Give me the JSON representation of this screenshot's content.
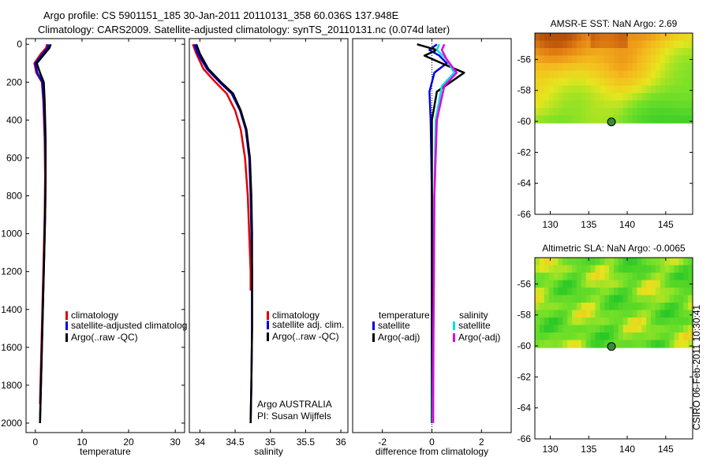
{
  "header": {
    "line1": "Argo profile: CS 5901151_185 30-Jan-2011 20110131_358 60.036S 137.948E",
    "line2": "Climatology: CARS2009. Satellite-adjusted climatology: synTS_20110131.nc (0.074d later)"
  },
  "side_label": "CSIRO 06-Feb-2011 10:30:41",
  "colors": {
    "climatology": "#e00000",
    "satellite": "#0000e0",
    "argo": "#000000",
    "sat_salinity": "#00e0e0",
    "argo_salinity": "#e000e0"
  },
  "chart_data": [
    {
      "type": "line",
      "id": "temperature",
      "xlabel": "temperature",
      "ylabel": "",
      "xlim": [
        -2,
        32
      ],
      "ylim": [
        2050,
        -30
      ],
      "xticks": [
        0,
        10,
        20,
        30
      ],
      "yticks": [
        0,
        200,
        400,
        600,
        800,
        1000,
        1200,
        1400,
        1600,
        1800,
        2000
      ],
      "legend": [
        "climatology",
        "satellite-adjusted climatolog",
        "Argo(..raw -QC)"
      ],
      "series": [
        {
          "name": "climatology",
          "color": "#e00000",
          "x": [
            2.5,
            2.3,
            1.2,
            -0.2,
            0.2,
            1.4,
            1.7,
            2.0,
            2.1,
            2.0,
            1.8,
            1.6,
            1.4,
            1.2,
            1.0
          ],
          "y": [
            0,
            20,
            50,
            100,
            150,
            200,
            300,
            500,
            700,
            900,
            1100,
            1300,
            1500,
            1700,
            1900
          ]
        },
        {
          "name": "satellite",
          "color": "#0000e0",
          "x": [
            2.8,
            2.6,
            1.6,
            0.0,
            0.4,
            1.5,
            1.8,
            2.1,
            2.2,
            2.1,
            1.9,
            1.7,
            1.5,
            1.3,
            1.1,
            1.0
          ],
          "y": [
            0,
            20,
            50,
            100,
            150,
            200,
            300,
            500,
            700,
            900,
            1100,
            1300,
            1500,
            1700,
            1900,
            2000
          ]
        },
        {
          "name": "argo",
          "color": "#000000",
          "x": [
            3.3,
            3.0,
            2.0,
            0.3,
            1.0,
            1.8,
            2.0,
            2.2,
            2.2,
            2.1,
            1.9,
            1.7,
            1.5,
            1.3,
            1.1,
            1.0
          ],
          "y": [
            0,
            20,
            50,
            100,
            150,
            200,
            300,
            500,
            700,
            900,
            1100,
            1300,
            1500,
            1700,
            1900,
            2000
          ]
        }
      ]
    },
    {
      "type": "line",
      "id": "salinity",
      "xlabel": "salinity",
      "ylabel": "",
      "xlim": [
        33.85,
        36.1
      ],
      "ylim": [
        2050,
        -30
      ],
      "xticks": [
        34,
        34.5,
        35,
        35.5,
        36
      ],
      "legend": [
        "climatology",
        "satellite adj. clim.",
        "Argo(..raw -QC)"
      ],
      "annotation": [
        "Argo AUSTRALIA",
        "PI: Susan Wijffels"
      ],
      "series": [
        {
          "name": "climatology",
          "color": "#e00000",
          "x": [
            33.9,
            33.95,
            34.05,
            34.22,
            34.38,
            34.5,
            34.58,
            34.64,
            34.68,
            34.7,
            34.72,
            34.72
          ],
          "y": [
            0,
            50,
            130,
            200,
            260,
            350,
            450,
            600,
            800,
            1000,
            1200,
            1300
          ]
        },
        {
          "name": "satellite",
          "color": "#0000e0",
          "x": [
            33.92,
            33.97,
            34.1,
            34.28,
            34.45,
            34.57,
            34.65,
            34.7,
            34.72,
            34.73,
            34.74,
            34.74,
            34.73,
            34.72
          ],
          "y": [
            0,
            50,
            130,
            200,
            260,
            350,
            450,
            600,
            800,
            1000,
            1200,
            1500,
            1800,
            2000
          ]
        },
        {
          "name": "argo",
          "color": "#000000",
          "x": [
            33.95,
            34.0,
            34.12,
            34.3,
            34.47,
            34.58,
            34.66,
            34.71,
            34.73,
            34.74,
            34.74,
            34.74,
            34.73,
            34.72
          ],
          "y": [
            0,
            50,
            130,
            200,
            260,
            350,
            450,
            600,
            800,
            1000,
            1200,
            1500,
            1800,
            2000
          ]
        }
      ]
    },
    {
      "type": "line",
      "id": "difference",
      "xlabel": "difference from climatology",
      "ylabel": "",
      "xlim": [
        -3.2,
        3.2
      ],
      "ylim": [
        2050,
        -30
      ],
      "xticks": [
        -2,
        0,
        2
      ],
      "legend_title_left": "temperature",
      "legend_title_right": "salinity",
      "legend": [
        "satellite",
        "Argo(-adj)",
        "satellite",
        "Argo(-adj)"
      ],
      "series": [
        {
          "name": "temperature satellite",
          "color": "#0000e0",
          "x": [
            0.2,
            -0.1,
            0.3,
            0.6,
            0.1,
            -0.1,
            -0.05,
            0.0,
            0.0,
            0.0,
            0.0
          ],
          "y": [
            0,
            30,
            60,
            100,
            150,
            250,
            400,
            800,
            1200,
            1600,
            2000
          ]
        },
        {
          "name": "temperature Argo(-adj)",
          "color": "#000000",
          "x": [
            -0.6,
            0.2,
            -0.3,
            0.4,
            1.3,
            0.2,
            0.0,
            0.0,
            0.0,
            0.0
          ],
          "y": [
            0,
            30,
            60,
            100,
            150,
            250,
            400,
            800,
            1400,
            2000
          ]
        },
        {
          "name": "salinity satellite",
          "color": "#00e0e0",
          "x": [
            0.3,
            0.2,
            0.6,
            0.9,
            0.4,
            0.15,
            0.1,
            0.08,
            0.05,
            0.03
          ],
          "y": [
            0,
            30,
            80,
            150,
            220,
            400,
            800,
            1200,
            1600,
            2000
          ]
        },
        {
          "name": "salinity Argo(-adj)",
          "color": "#e000e0",
          "x": [
            0.5,
            0.4,
            0.6,
            1.0,
            0.5,
            0.2,
            0.1,
            0.08,
            0.06,
            0.05
          ],
          "y": [
            0,
            30,
            80,
            150,
            220,
            400,
            800,
            1200,
            1600,
            2000
          ]
        }
      ]
    },
    {
      "type": "heatmap",
      "id": "sst_map",
      "title": "AMSR-E SST: NaN Argo: 2.69",
      "xlim": [
        128,
        148.5
      ],
      "ylim": [
        -66,
        -54.3
      ],
      "xticks": [
        130,
        135,
        140,
        145
      ],
      "yticks": [
        -56,
        -58,
        -60,
        -62,
        -64,
        -66
      ],
      "data_lat_range": [
        -60.1,
        -54.3
      ],
      "argo_position": {
        "lon": 137.948,
        "lat": -60.036
      }
    },
    {
      "type": "heatmap",
      "id": "sla_map",
      "title": "Altimetric SLA: NaN Argo: -0.0065",
      "xlim": [
        128,
        148.5
      ],
      "ylim": [
        -66,
        -54.3
      ],
      "xticks": [
        130,
        135,
        140,
        145
      ],
      "yticks": [
        -56,
        -58,
        -60,
        -62,
        -64,
        -66
      ],
      "data_lat_range": [
        -60.1,
        -54.3
      ],
      "argo_position": {
        "lon": 137.948,
        "lat": -60.036
      }
    }
  ]
}
